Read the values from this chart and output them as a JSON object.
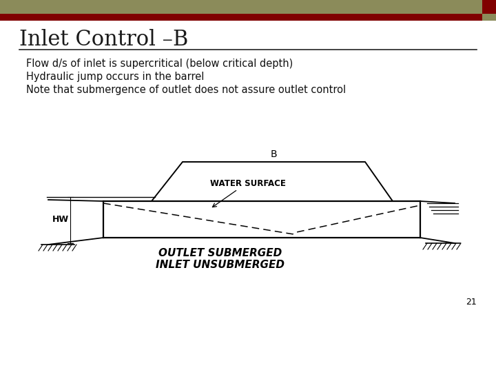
{
  "title": "Inlet Control –B",
  "title_color": "#1a1a1a",
  "title_fontsize": 22,
  "bg_color": "#FFFFFF",
  "header_bar_color1": "#8B8B5A",
  "header_bar_color2": "#800000",
  "small_square_color": "#800000",
  "bullet_lines": [
    "Flow d/s of inlet is supercritical (below critical depth)",
    "Hydraulic jump occurs in the barrel",
    "Note that submergence of outlet does not assure outlet control"
  ],
  "bullet_fontsize": 10.5,
  "bullet_color": "#111111",
  "page_number": "21",
  "diagram_label_b": "B",
  "diagram_label_ws": "WATER SURFACE",
  "diagram_label_hw": "HW",
  "diagram_label_outlet": "OUTLET SUBMERGED",
  "diagram_label_inlet": "INLET UNSUBMERGED"
}
